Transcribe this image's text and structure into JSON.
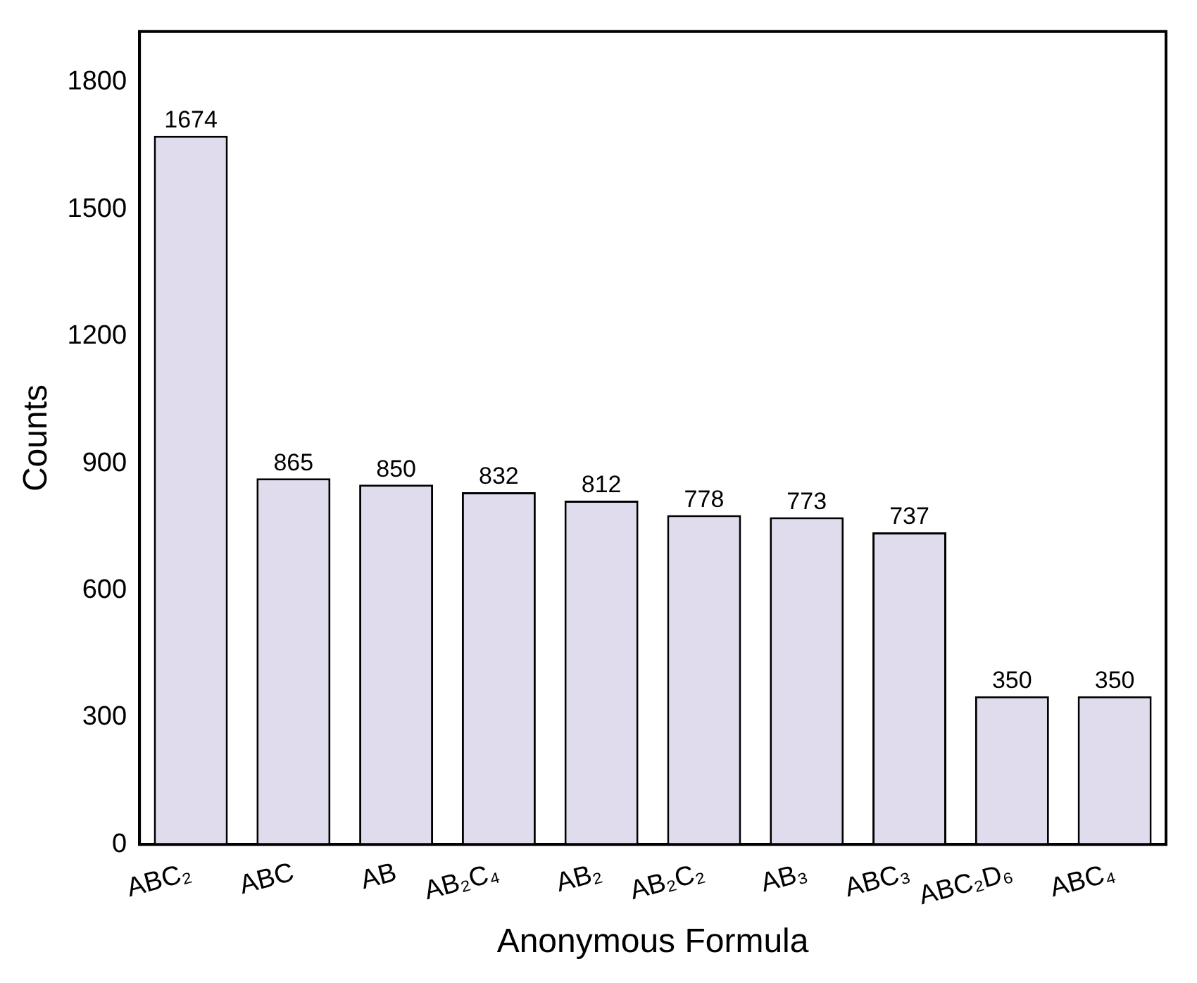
{
  "chart_data": {
    "type": "bar",
    "xlabel": "Anonymous Formula",
    "ylabel": "Counts",
    "categories": [
      "ABC₂",
      "ABC",
      "AB",
      "AB₂C₄",
      "AB₂",
      "AB₂C₂",
      "AB₃",
      "ABC₃",
      "ABC₂D₆",
      "ABC₄"
    ],
    "values": [
      1674,
      865,
      850,
      832,
      812,
      778,
      773,
      737,
      350,
      350
    ],
    "color": "#e0dcee",
    "ylim": [
      0,
      1920
    ],
    "yticks": [
      0,
      300,
      600,
      900,
      1200,
      1500,
      1800
    ],
    "grid": false,
    "legend": false,
    "data_labels": true
  }
}
